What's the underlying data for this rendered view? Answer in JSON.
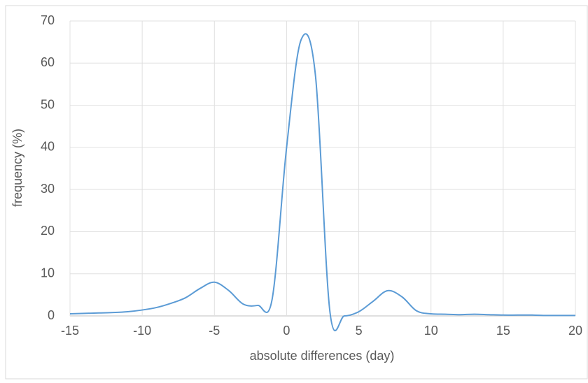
{
  "chart_data": {
    "type": "line",
    "x_label": "absolute differences (day)",
    "y_label": "frequency (%)",
    "x": [
      -15,
      -14,
      -13,
      -12,
      -11,
      -10,
      -9,
      -8,
      -7,
      -6,
      -5,
      -4,
      -3,
      -2,
      -1,
      0,
      1,
      2,
      3,
      4,
      5,
      6,
      7,
      8,
      9,
      10,
      11,
      12,
      13,
      14,
      15,
      16,
      17,
      18,
      19,
      20
    ],
    "series": [
      {
        "color": "#5b9bd5",
        "values": [
          0.5,
          0.6,
          0.7,
          0.8,
          1.0,
          1.4,
          2.0,
          3.0,
          4.3,
          6.5,
          8.0,
          6.0,
          2.8,
          2.5,
          4.0,
          40,
          65.5,
          57,
          1.0,
          0,
          1.0,
          3.5,
          6.0,
          4.5,
          1.2,
          0.5,
          0.4,
          0.3,
          0.4,
          0.3,
          0.2,
          0.2,
          0.2,
          0.1,
          0.1,
          0.1
        ]
      }
    ],
    "xlim": [
      -15,
      20
    ],
    "xticks": [
      -15,
      -10,
      -5,
      0,
      5,
      10,
      15,
      20
    ],
    "ylim": [
      0,
      70
    ],
    "yticks": [
      0,
      10,
      20,
      30,
      40,
      50,
      60,
      70
    ],
    "grid": true
  }
}
